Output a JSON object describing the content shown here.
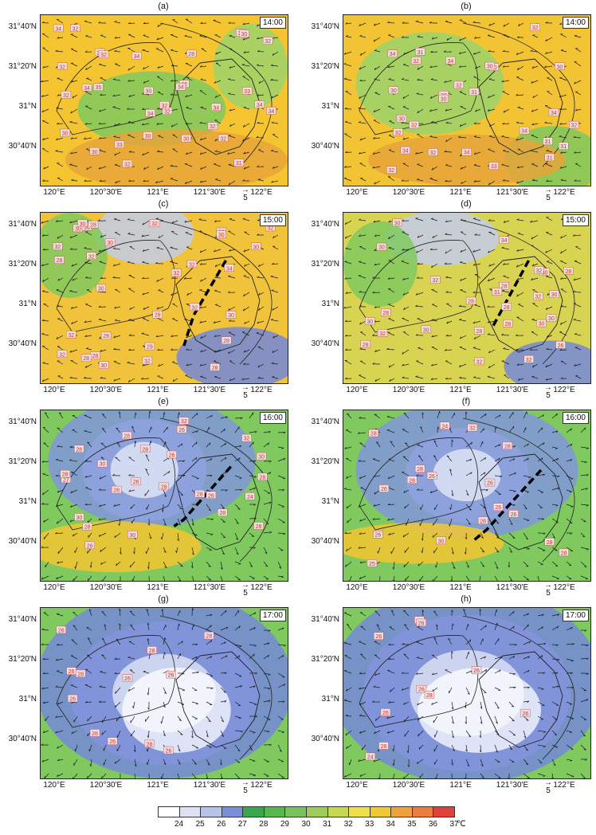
{
  "axes": {
    "xticks": [
      "120°E",
      "120°30'E",
      "121°E",
      "121°30'E",
      "122°E"
    ],
    "yticks": [
      "31°40'N",
      "31°20'N",
      "31°N",
      "30°40'N"
    ],
    "vector_scale": "5"
  },
  "panels": [
    {
      "label": "(a)",
      "time": "14:00",
      "base": "#f4c531",
      "blobs": [
        {
          "c": "#7fc95f"
        },
        {
          "c": "#e8a53a"
        },
        {
          "c": "#9bd36c"
        }
      ],
      "values": [
        "30",
        "30",
        "32",
        "32",
        "30",
        "32",
        "32",
        "35",
        "33",
        "32",
        "30",
        "32",
        "34",
        "30",
        "32",
        "34",
        "30",
        "32",
        "34",
        "32",
        "32",
        "31",
        "34",
        "34",
        "33",
        "34",
        "28",
        "32",
        "34",
        "30",
        "30",
        "34"
      ]
    },
    {
      "label": "(b)",
      "time": "14:00",
      "base": "#f2c434",
      "blobs": [
        {
          "c": "#7fc95f"
        },
        {
          "c": "#e8a53a"
        },
        {
          "c": "#9bd36c"
        }
      ],
      "values": [
        "32",
        "32",
        "30",
        "31",
        "30",
        "32",
        "30",
        "34",
        "32",
        "33",
        "30",
        "32",
        "31",
        "32",
        "34",
        "30",
        "32",
        "34",
        "34",
        "31",
        "31",
        "31",
        "30",
        "34",
        "34",
        "32",
        "30"
      ]
    },
    {
      "label": "(c)",
      "time": "15:00",
      "base": "#f1c33a",
      "blobs": [
        {
          "c": "#c3cdea"
        },
        {
          "c": "#7488d9"
        },
        {
          "c": "#7fc95f"
        }
      ],
      "values": [
        "30",
        "28",
        "32",
        "30",
        "30",
        "28",
        "28",
        "34",
        "32",
        "30",
        "28",
        "30",
        "32",
        "29",
        "32",
        "30",
        "32",
        "30",
        "28",
        "32",
        "32",
        "30",
        "32",
        "32",
        "32",
        "30",
        "30",
        "28",
        "28",
        "28"
      ]
    },
    {
      "label": "(d)",
      "time": "15:00",
      "base": "#d9d352",
      "blobs": [
        {
          "c": "#c3cdea"
        },
        {
          "c": "#7488d9"
        },
        {
          "c": "#7fc95f"
        }
      ],
      "values": [
        "26",
        "28",
        "28",
        "28",
        "28",
        "28",
        "30",
        "32",
        "30",
        "32",
        "28",
        "32",
        "32",
        "30",
        "32",
        "30",
        "34",
        "31",
        "32",
        "30",
        "30",
        "30",
        "30",
        "28",
        "28"
      ]
    },
    {
      "label": "(e)",
      "time": "16:00",
      "base": "#7fc95f",
      "blobs": [
        {
          "c": "#dfe4f5"
        },
        {
          "c": "#8197dc"
        },
        {
          "c": "#f4c531"
        }
      ],
      "values": [
        "28",
        "24",
        "26",
        "26",
        "28",
        "27",
        "28",
        "28",
        "26",
        "26",
        "26",
        "28",
        "30",
        "28",
        "28",
        "28",
        "28",
        "30",
        "32",
        "28",
        "30",
        "32",
        "28",
        "30"
      ]
    },
    {
      "label": "(f)",
      "time": "16:00",
      "base": "#7fc95f",
      "blobs": [
        {
          "c": "#dfe4f5"
        },
        {
          "c": "#8197dc"
        },
        {
          "c": "#f4c531"
        }
      ],
      "values": [
        "26",
        "26",
        "26",
        "24",
        "26",
        "25",
        "28",
        "26",
        "28",
        "28",
        "26",
        "32",
        "30",
        "28",
        "28",
        "28",
        "28",
        "28"
      ]
    },
    {
      "label": "(g)",
      "time": "17:00",
      "base": "#7fc95f",
      "blobs": [
        {
          "c": "#d2daf2"
        },
        {
          "c": "#7488d9"
        },
        {
          "c": "#eef1fb"
        }
      ],
      "values": [
        "28",
        "26",
        "28",
        "26",
        "26",
        "26",
        "28",
        "26",
        "28",
        "26",
        "26",
        "28"
      ]
    },
    {
      "label": "(h)",
      "time": "17:00",
      "base": "#7fc95f",
      "blobs": [
        {
          "c": "#d2daf2"
        },
        {
          "c": "#7488d9"
        },
        {
          "c": "#eef1fb"
        }
      ],
      "values": [
        "26",
        "26",
        "26",
        "26",
        "24",
        "26",
        "26",
        "28",
        "26",
        "26"
      ]
    }
  ],
  "colorbar": {
    "labels": [
      "24",
      "25",
      "26",
      "27",
      "28",
      "29",
      "30",
      "31",
      "32",
      "33",
      "34",
      "35",
      "36",
      "37"
    ],
    "unit": "℃",
    "colors": [
      "#ffffff",
      "#dde2f4",
      "#b8c3ea",
      "#7a8fdc",
      "#3aa84a",
      "#56b84e",
      "#79c35c",
      "#9ccd58",
      "#c6d84d",
      "#efe04a",
      "#f3c933",
      "#f0a33a",
      "#e97e3e",
      "#e0423a"
    ]
  },
  "legend_colors": {
    "front_line": "#000000",
    "boundary": "#222222",
    "wind_arrow": "#1a1a1a",
    "label_bg": "#f2dede",
    "label_text": "#c0392b"
  }
}
